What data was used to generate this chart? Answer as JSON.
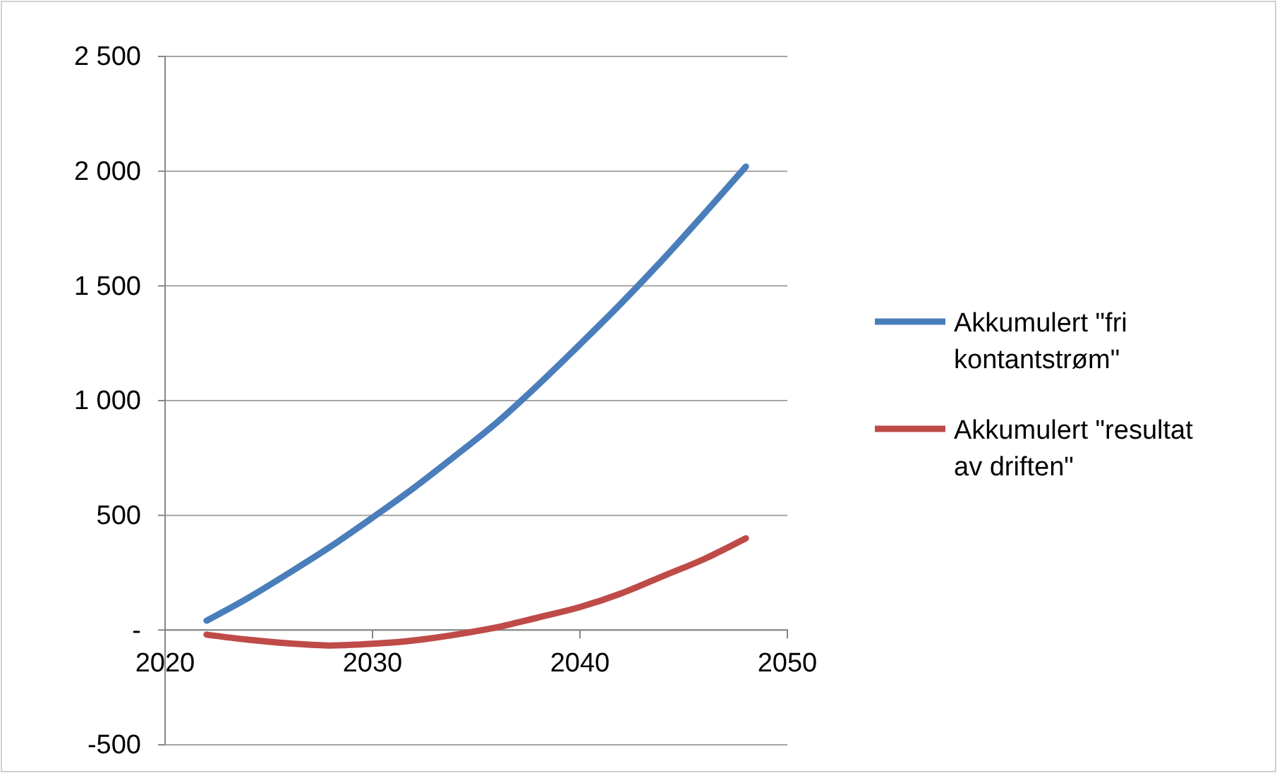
{
  "chart_data": {
    "type": "line",
    "x": [
      2022,
      2024,
      2026,
      2028,
      2030,
      2032,
      2034,
      2036,
      2038,
      2040,
      2042,
      2044,
      2046,
      2048
    ],
    "series": [
      {
        "name": "Akkumulert \"fri kontantstrøm\"",
        "color": "#4a7ebb",
        "values": [
          41,
          140,
          250,
          365,
          490,
          620,
          760,
          905,
          1070,
          1245,
          1425,
          1615,
          1815,
          2020
        ]
      },
      {
        "name": "Akkumulert \"resultat av driften\"",
        "color": "#be4b48",
        "values": [
          -20,
          -42,
          -58,
          -67,
          -60,
          -45,
          -20,
          12,
          55,
          100,
          160,
          235,
          310,
          400
        ]
      }
    ],
    "xlim": [
      2020,
      2050
    ],
    "xticks": [
      2020,
      2030,
      2040,
      2050
    ],
    "ylim": [
      -500,
      2500
    ],
    "yticks": [
      {
        "value": -500,
        "label": "-500"
      },
      {
        "value": 0,
        "label": "-"
      },
      500,
      {
        "value": 1000,
        "label": "1 000"
      },
      {
        "value": 1500,
        "label": "1 500"
      },
      {
        "value": 2000,
        "label": "2 000"
      },
      {
        "value": 2500,
        "label": "2 500"
      }
    ],
    "grid": "y",
    "legend": "right",
    "line_style": "solid"
  }
}
